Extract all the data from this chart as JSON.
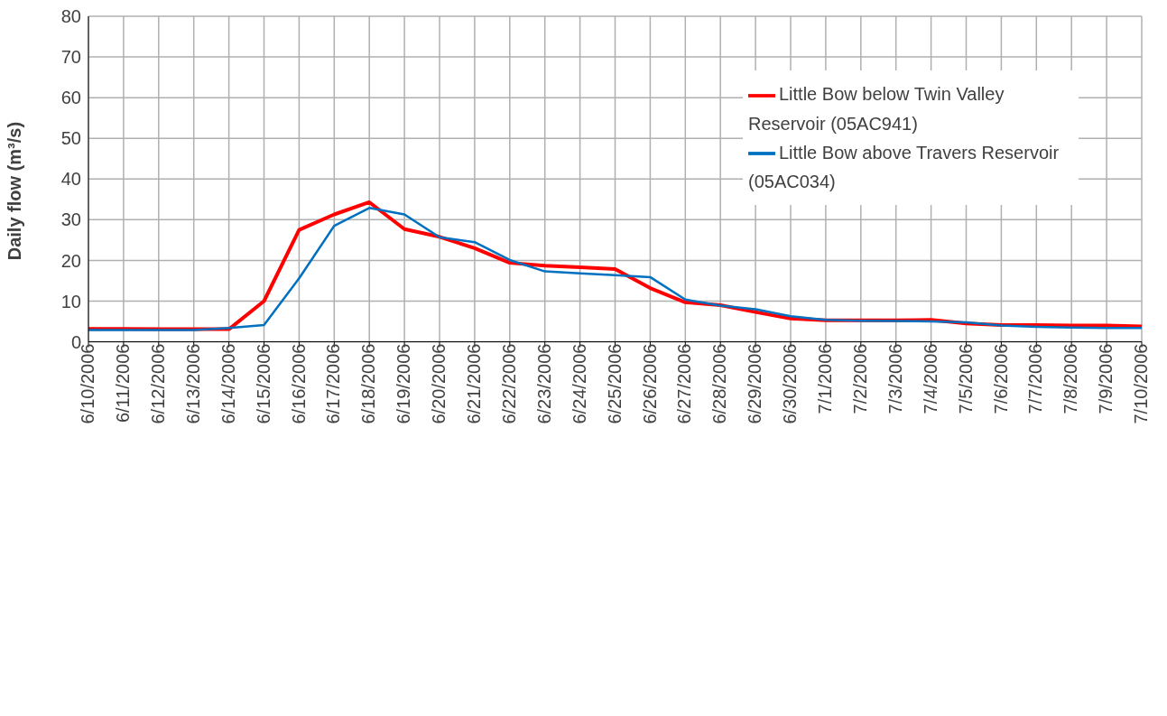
{
  "chart_data": {
    "type": "line",
    "ylabel": "Daily flow (m³/s)",
    "categories": [
      "6/10/2006",
      "6/11/2006",
      "6/12/2006",
      "6/13/2006",
      "6/14/2006",
      "6/15/2006",
      "6/16/2006",
      "6/17/2006",
      "6/18/2006",
      "6/19/2006",
      "6/20/2006",
      "6/21/2006",
      "6/22/2006",
      "6/23/2006",
      "6/24/2006",
      "6/25/2006",
      "6/26/2006",
      "6/27/2006",
      "6/28/2006",
      "6/29/2006",
      "6/30/2006",
      "7/1/2006",
      "7/2/2006",
      "7/3/2006",
      "7/4/2006",
      "7/5/2006",
      "7/6/2006",
      "7/7/2006",
      "7/8/2006",
      "7/9/2006",
      "7/10/2006"
    ],
    "series": [
      {
        "name": "Little Bow below Twin Valley Reservoir (05AC941)",
        "color": "#ff0000",
        "values": [
          3.2,
          3.2,
          3.1,
          3.1,
          3.1,
          10.0,
          27.5,
          31.3,
          34.3,
          27.7,
          25.8,
          23.0,
          19.4,
          18.7,
          18.3,
          17.9,
          13.2,
          9.7,
          9.0,
          7.3,
          5.7,
          5.3,
          5.3,
          5.3,
          5.4,
          4.5,
          4.1,
          4.1,
          4.0,
          4.0,
          3.8
        ]
      },
      {
        "name": "Little Bow above Travers Reservoir (05AC034)",
        "color": "#0070c0",
        "values": [
          2.9,
          2.9,
          2.9,
          2.9,
          3.4,
          4.1,
          15.6,
          28.5,
          32.9,
          31.3,
          25.7,
          24.5,
          20.1,
          17.3,
          16.8,
          16.4,
          15.9,
          10.4,
          8.9,
          8.0,
          6.3,
          5.4,
          5.2,
          5.1,
          5.0,
          4.8,
          4.0,
          3.7,
          3.5,
          3.4,
          3.4
        ]
      }
    ],
    "ylim": [
      0,
      80
    ],
    "yticks": [
      0,
      10,
      20,
      30,
      40,
      50,
      60,
      70,
      80
    ],
    "grid": true,
    "legend": "top right",
    "marker": "none",
    "line_style": "solid"
  }
}
